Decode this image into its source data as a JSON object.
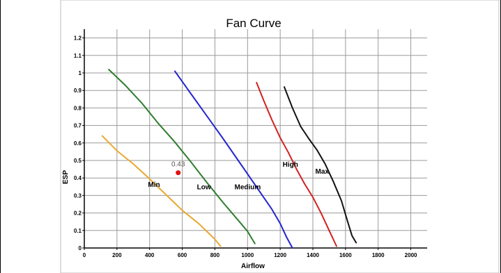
{
  "chart_data": {
    "type": "line",
    "title": "Fan Curve",
    "xlabel": "Airflow",
    "ylabel": "ESP",
    "xlim": [
      0,
      2100
    ],
    "ylim": [
      0,
      1.25
    ],
    "x_ticks": [
      "0",
      "200",
      "400",
      "600",
      "800",
      "1000",
      "1200",
      "1400",
      "1600",
      "1800",
      "2000"
    ],
    "x_tick_values": [
      0,
      200,
      400,
      600,
      800,
      1000,
      1200,
      1400,
      1600,
      1800,
      2000
    ],
    "y_ticks": [
      "0",
      "0.1",
      "0.2",
      "0.3",
      "0.4",
      "0.5",
      "0.6",
      "0.7",
      "0.8",
      "0.9",
      "1",
      "1.1",
      "1.2"
    ],
    "y_tick_values": [
      0,
      0.1,
      0.2,
      0.3,
      0.4,
      0.5,
      0.6,
      0.7,
      0.8,
      0.9,
      1.0,
      1.1,
      1.2
    ],
    "grid": true,
    "series": [
      {
        "name": "Min",
        "color": "#e8a830",
        "label_at": [
          390,
          0.35
        ],
        "points": [
          [
            110,
            0.64
          ],
          [
            200,
            0.555
          ],
          [
            300,
            0.48
          ],
          [
            400,
            0.395
          ],
          [
            500,
            0.305
          ],
          [
            600,
            0.215
          ],
          [
            700,
            0.14
          ],
          [
            800,
            0.05
          ],
          [
            835,
            0.01
          ]
        ]
      },
      {
        "name": "Low",
        "color": "#2e7d2e",
        "label_at": [
          690,
          0.335
        ],
        "points": [
          [
            150,
            1.02
          ],
          [
            250,
            0.93
          ],
          [
            350,
            0.83
          ],
          [
            450,
            0.715
          ],
          [
            550,
            0.61
          ],
          [
            650,
            0.495
          ],
          [
            750,
            0.375
          ],
          [
            850,
            0.26
          ],
          [
            950,
            0.15
          ],
          [
            1000,
            0.095
          ],
          [
            1045,
            0.025
          ]
        ]
      },
      {
        "name": "Medium",
        "color": "#2525d0",
        "label_at": [
          920,
          0.335
        ],
        "points": [
          [
            555,
            1.01
          ],
          [
            650,
            0.885
          ],
          [
            750,
            0.755
          ],
          [
            850,
            0.625
          ],
          [
            950,
            0.49
          ],
          [
            1050,
            0.355
          ],
          [
            1150,
            0.22
          ],
          [
            1200,
            0.14
          ],
          [
            1240,
            0.06
          ],
          [
            1275,
            0.0
          ]
        ]
      },
      {
        "name": "High",
        "color": "#d42020",
        "label_at": [
          1215,
          0.465
        ],
        "points": [
          [
            1055,
            0.945
          ],
          [
            1100,
            0.84
          ],
          [
            1150,
            0.73
          ],
          [
            1200,
            0.63
          ],
          [
            1250,
            0.545
          ],
          [
            1300,
            0.45
          ],
          [
            1350,
            0.365
          ],
          [
            1400,
            0.29
          ],
          [
            1450,
            0.2
          ],
          [
            1500,
            0.1
          ],
          [
            1545,
            0.01
          ]
        ]
      },
      {
        "name": "Max",
        "color": "#111111",
        "label_at": [
          1415,
          0.425
        ],
        "points": [
          [
            1225,
            0.92
          ],
          [
            1275,
            0.8
          ],
          [
            1325,
            0.695
          ],
          [
            1375,
            0.625
          ],
          [
            1425,
            0.56
          ],
          [
            1475,
            0.48
          ],
          [
            1525,
            0.38
          ],
          [
            1575,
            0.27
          ],
          [
            1610,
            0.16
          ],
          [
            1640,
            0.07
          ],
          [
            1665,
            0.03
          ]
        ]
      }
    ],
    "highlight_point": {
      "x": 575,
      "y": 0.43,
      "label": "0.43",
      "color": "#e01010"
    }
  }
}
